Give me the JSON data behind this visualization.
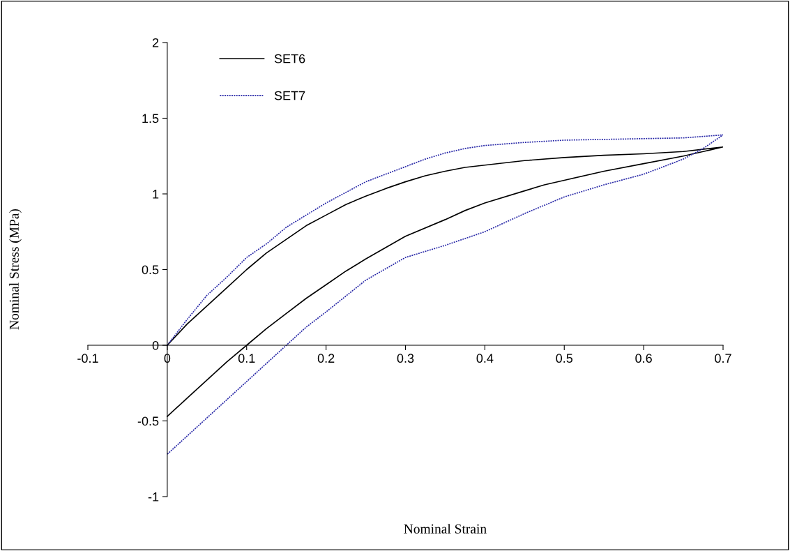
{
  "chart_data": {
    "type": "line",
    "xlabel": "Nominal Strain",
    "ylabel": "Nominal Stress (MPa)",
    "xlim": [
      -0.1,
      0.7
    ],
    "xticks": [
      -0.1,
      0,
      0.1,
      0.2,
      0.3,
      0.4,
      0.5,
      0.6,
      0.7
    ],
    "ylim": [
      -1,
      2
    ],
    "yticks": [
      -1,
      -0.5,
      0,
      0.5,
      1,
      1.5,
      2
    ],
    "grid": false,
    "legend": "top left",
    "marker": "none",
    "series": [
      {
        "name": "SET6",
        "color": "#000000",
        "line_style": "solid",
        "x": [
          0,
          0.025,
          0.05,
          0.075,
          0.1,
          0.125,
          0.15,
          0.175,
          0.2,
          0.225,
          0.25,
          0.275,
          0.3,
          0.325,
          0.35,
          0.375,
          0.4,
          0.45,
          0.5,
          0.55,
          0.6,
          0.65,
          0.7,
          0.675,
          0.65,
          0.6,
          0.55,
          0.5,
          0.475,
          0.45,
          0.4,
          0.375,
          0.35,
          0.3,
          0.275,
          0.25,
          0.225,
          0.2,
          0.175,
          0.15,
          0.125,
          0.1,
          0.075,
          0.05,
          0.025,
          0
        ],
        "values": [
          0,
          0.14,
          0.26,
          0.38,
          0.5,
          0.61,
          0.7,
          0.79,
          0.86,
          0.93,
          0.985,
          1.035,
          1.08,
          1.12,
          1.15,
          1.175,
          1.19,
          1.22,
          1.24,
          1.255,
          1.265,
          1.28,
          1.31,
          1.28,
          1.25,
          1.2,
          1.15,
          1.09,
          1.06,
          1.02,
          0.94,
          0.89,
          0.83,
          0.72,
          0.645,
          0.57,
          0.49,
          0.4,
          0.31,
          0.21,
          0.11,
          0,
          -0.11,
          -0.23,
          -0.35,
          -0.47
        ]
      },
      {
        "name": "SET7",
        "color": "#2a2aa8",
        "line_style": "dotted",
        "x": [
          0,
          0.025,
          0.05,
          0.075,
          0.1,
          0.125,
          0.15,
          0.175,
          0.2,
          0.225,
          0.25,
          0.275,
          0.3,
          0.325,
          0.35,
          0.375,
          0.4,
          0.45,
          0.5,
          0.55,
          0.6,
          0.65,
          0.7,
          0.675,
          0.65,
          0.6,
          0.55,
          0.5,
          0.45,
          0.4,
          0.35,
          0.3,
          0.25,
          0.2,
          0.175,
          0.15,
          0.125,
          0.1,
          0.075,
          0.05,
          0.025,
          0
        ],
        "values": [
          0,
          0.17,
          0.33,
          0.45,
          0.58,
          0.67,
          0.78,
          0.86,
          0.94,
          1.01,
          1.08,
          1.13,
          1.18,
          1.23,
          1.27,
          1.3,
          1.32,
          1.34,
          1.355,
          1.36,
          1.365,
          1.37,
          1.39,
          1.3,
          1.23,
          1.13,
          1.06,
          0.98,
          0.87,
          0.75,
          0.66,
          0.58,
          0.43,
          0.22,
          0.12,
          0,
          -0.12,
          -0.24,
          -0.36,
          -0.48,
          -0.6,
          -0.72
        ]
      }
    ]
  }
}
